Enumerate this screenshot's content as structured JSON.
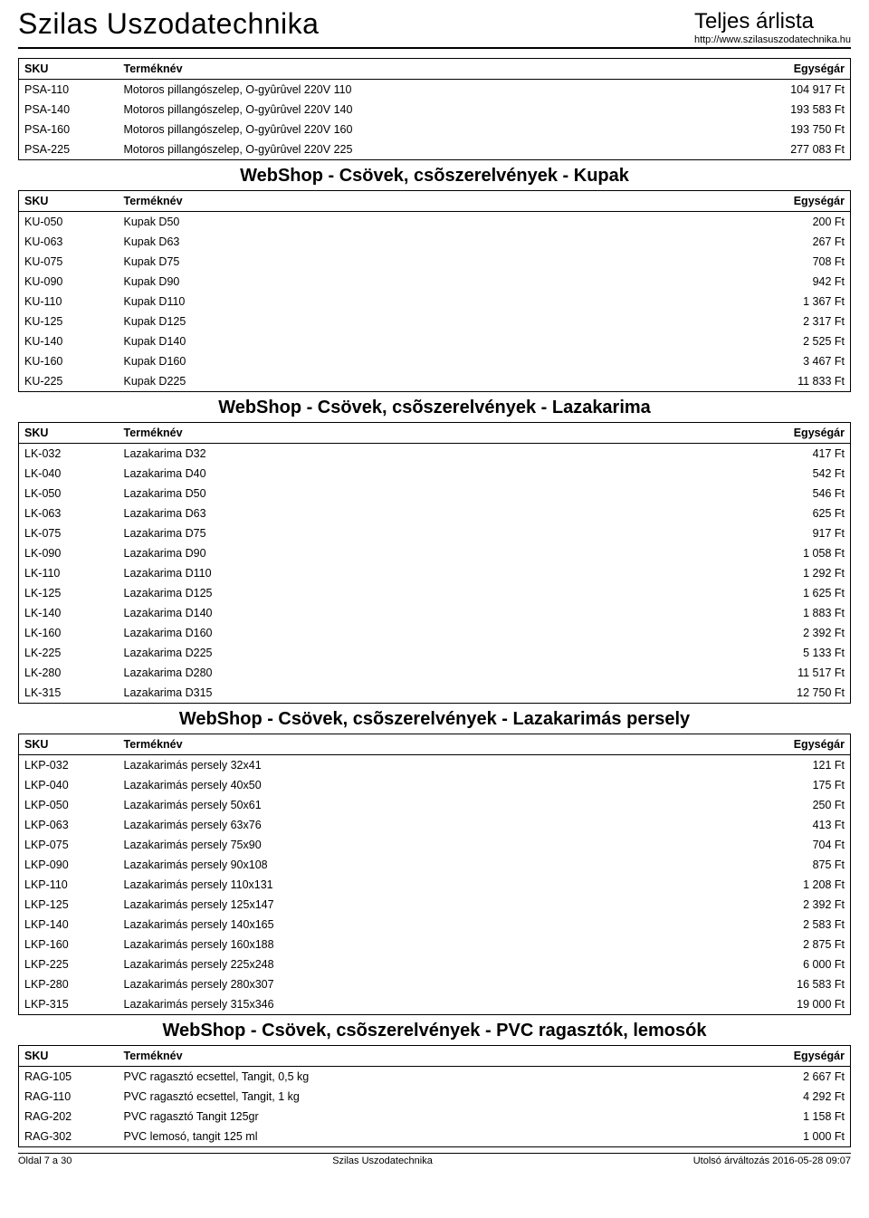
{
  "header": {
    "company": "Szilas Uszodatechnika",
    "title": "Teljes árlista",
    "url": "http://www.szilasuszodatechnika.hu"
  },
  "columns": {
    "sku": "SKU",
    "name": "Terméknév",
    "price": "Egységár"
  },
  "sections": [
    {
      "title": "",
      "rows": [
        {
          "sku": "PSA-110",
          "name": "Motoros pillangószelep, O-gyûrûvel 220V 110",
          "price": "104 917 Ft"
        },
        {
          "sku": "PSA-140",
          "name": "Motoros pillangószelep, O-gyûrûvel 220V 140",
          "price": "193 583 Ft"
        },
        {
          "sku": "PSA-160",
          "name": "Motoros pillangószelep, O-gyûrûvel 220V 160",
          "price": "193 750 Ft"
        },
        {
          "sku": "PSA-225",
          "name": "Motoros pillangószelep, O-gyûrûvel 220V 225",
          "price": "277 083 Ft"
        }
      ]
    },
    {
      "title": "WebShop - Csövek, csõszerelvények - Kupak",
      "rows": [
        {
          "sku": "KU-050",
          "name": "Kupak D50",
          "price": "200 Ft"
        },
        {
          "sku": "KU-063",
          "name": "Kupak D63",
          "price": "267 Ft"
        },
        {
          "sku": "KU-075",
          "name": "Kupak D75",
          "price": "708 Ft"
        },
        {
          "sku": "KU-090",
          "name": "Kupak D90",
          "price": "942 Ft"
        },
        {
          "sku": "KU-110",
          "name": "Kupak D110",
          "price": "1 367 Ft"
        },
        {
          "sku": "KU-125",
          "name": "Kupak D125",
          "price": "2 317 Ft"
        },
        {
          "sku": "KU-140",
          "name": "Kupak D140",
          "price": "2 525 Ft"
        },
        {
          "sku": "KU-160",
          "name": "Kupak D160",
          "price": "3 467 Ft"
        },
        {
          "sku": "KU-225",
          "name": "Kupak D225",
          "price": "11 833 Ft"
        }
      ]
    },
    {
      "title": "WebShop - Csövek, csõszerelvények - Lazakarima",
      "rows": [
        {
          "sku": "LK-032",
          "name": "Lazakarima D32",
          "price": "417 Ft"
        },
        {
          "sku": "LK-040",
          "name": "Lazakarima D40",
          "price": "542 Ft"
        },
        {
          "sku": "LK-050",
          "name": "Lazakarima D50",
          "price": "546 Ft"
        },
        {
          "sku": "LK-063",
          "name": "Lazakarima D63",
          "price": "625 Ft"
        },
        {
          "sku": "LK-075",
          "name": "Lazakarima D75",
          "price": "917 Ft"
        },
        {
          "sku": "LK-090",
          "name": "Lazakarima D90",
          "price": "1 058 Ft"
        },
        {
          "sku": "LK-110",
          "name": "Lazakarima D110",
          "price": "1 292 Ft"
        },
        {
          "sku": "LK-125",
          "name": "Lazakarima D125",
          "price": "1 625 Ft"
        },
        {
          "sku": "LK-140",
          "name": "Lazakarima D140",
          "price": "1 883 Ft"
        },
        {
          "sku": "LK-160",
          "name": "Lazakarima D160",
          "price": "2 392 Ft"
        },
        {
          "sku": "LK-225",
          "name": "Lazakarima D225",
          "price": "5 133 Ft"
        },
        {
          "sku": "LK-280",
          "name": "Lazakarima D280",
          "price": "11 517 Ft"
        },
        {
          "sku": "LK-315",
          "name": "Lazakarima D315",
          "price": "12 750 Ft"
        }
      ]
    },
    {
      "title": "WebShop - Csövek, csõszerelvények - Lazakarimás persely",
      "rows": [
        {
          "sku": "LKP-032",
          "name": "Lazakarimás persely 32x41",
          "price": "121 Ft"
        },
        {
          "sku": "LKP-040",
          "name": "Lazakarimás persely 40x50",
          "price": "175 Ft"
        },
        {
          "sku": "LKP-050",
          "name": "Lazakarimás persely 50x61",
          "price": "250 Ft"
        },
        {
          "sku": "LKP-063",
          "name": "Lazakarimás persely 63x76",
          "price": "413 Ft"
        },
        {
          "sku": "LKP-075",
          "name": "Lazakarimás persely 75x90",
          "price": "704 Ft"
        },
        {
          "sku": "LKP-090",
          "name": "Lazakarimás persely 90x108",
          "price": "875 Ft"
        },
        {
          "sku": "LKP-110",
          "name": "Lazakarimás persely 110x131",
          "price": "1 208 Ft"
        },
        {
          "sku": "LKP-125",
          "name": "Lazakarimás persely 125x147",
          "price": "2 392 Ft"
        },
        {
          "sku": "LKP-140",
          "name": "Lazakarimás persely 140x165",
          "price": "2 583 Ft"
        },
        {
          "sku": "LKP-160",
          "name": "Lazakarimás persely 160x188",
          "price": "2 875 Ft"
        },
        {
          "sku": "LKP-225",
          "name": "Lazakarimás persely 225x248",
          "price": "6 000 Ft"
        },
        {
          "sku": "LKP-280",
          "name": "Lazakarimás persely 280x307",
          "price": "16 583 Ft"
        },
        {
          "sku": "LKP-315",
          "name": "Lazakarimás persely 315x346",
          "price": "19 000 Ft"
        }
      ]
    },
    {
      "title": "WebShop - Csövek, csõszerelvények - PVC ragasztók, lemosók",
      "rows": [
        {
          "sku": "RAG-105",
          "name": "PVC ragasztó ecsettel, Tangit, 0,5 kg",
          "price": "2 667 Ft"
        },
        {
          "sku": "RAG-110",
          "name": "PVC ragasztó ecsettel, Tangit, 1 kg",
          "price": "4 292 Ft"
        },
        {
          "sku": "RAG-202",
          "name": "PVC ragasztó Tangit 125gr",
          "price": "1 158 Ft"
        },
        {
          "sku": "RAG-302",
          "name": "PVC lemosó, tangit 125 ml",
          "price": "1 000 Ft"
        }
      ]
    }
  ],
  "footer": {
    "left": "Oldal 7 a 30",
    "center": "Szilas Uszodatechnika",
    "right": "Utolsó árváltozás 2016-05-28 09:07"
  }
}
